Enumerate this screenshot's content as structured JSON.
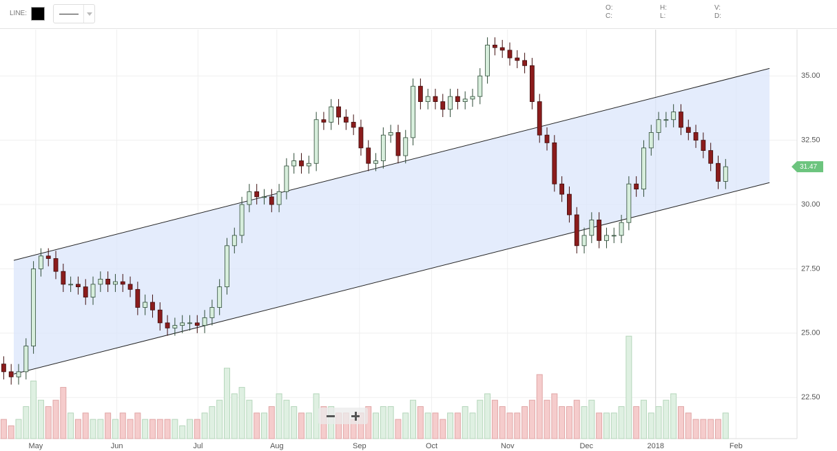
{
  "toolbar": {
    "line_label": "LINE:",
    "quote_labels": [
      "O:",
      "C:",
      "H:",
      "L:",
      "V:",
      "D:"
    ]
  },
  "chart_data": {
    "type": "candlestick",
    "xlim": [
      -0.5,
      106.6
    ],
    "xticks": [
      {
        "value": 4.3,
        "label": "May"
      },
      {
        "value": 15.2,
        "label": "Jun"
      },
      {
        "value": 26.1,
        "label": "Jul"
      },
      {
        "value": 36.7,
        "label": "Aug"
      },
      {
        "value": 47.8,
        "label": "Sep"
      },
      {
        "value": 57.5,
        "label": "Oct"
      },
      {
        "value": 67.7,
        "label": "Nov"
      },
      {
        "value": 78.3,
        "label": "Dec"
      },
      {
        "value": 87.6,
        "label": "2018"
      },
      {
        "value": 98.4,
        "label": "Feb"
      }
    ],
    "ylim": [
      20.9,
      36.8
    ],
    "yticks": [
      {
        "value": 22.5,
        "label": "22.50"
      },
      {
        "value": 25,
        "label": "25.00"
      },
      {
        "value": 27.5,
        "label": "27.50"
      },
      {
        "value": 30,
        "label": "30.00"
      },
      {
        "value": 32.5,
        "label": "32.50"
      },
      {
        "value": 35,
        "label": "35.00"
      }
    ],
    "grid": true,
    "open": [
      23.8,
      23.5,
      23.3,
      23.5,
      24.5,
      27.5,
      28,
      27.9,
      27.4,
      26.9,
      26.9,
      26.8,
      26.4,
      26.9,
      27.1,
      26.9,
      27,
      26.9,
      26.7,
      26,
      26.2,
      25.9,
      25.4,
      25.2,
      25.3,
      25.4,
      25.4,
      25.3,
      25.6,
      26,
      26.8,
      28.4,
      28.8,
      30,
      30.5,
      30.3,
      30.3,
      30,
      30.5,
      31.5,
      31.7,
      31.5,
      31.6,
      33.3,
      33.2,
      33.8,
      33.4,
      33.2,
      33,
      32.2,
      31.6,
      31.7,
      32.7,
      32.8,
      31.9,
      32.6,
      34.6,
      34,
      34.2,
      34,
      33.7,
      34.2,
      34,
      34.1,
      34.2,
      35,
      36.2,
      36.1,
      36,
      35.7,
      35.6,
      35.4,
      34,
      32.7,
      32.4,
      30.8,
      30.4,
      29.6,
      28.4,
      28.8,
      29.4,
      28.6,
      28.8,
      28.8,
      29.3,
      30.8,
      30.6,
      32.2,
      32.8,
      33.3,
      33.3,
      33.6,
      33,
      32.8,
      32.5,
      32.1,
      31.6,
      30.9
    ],
    "high": [
      24.1,
      23.8,
      23.8,
      24.8,
      27.8,
      28.3,
      28.3,
      28.2,
      27.7,
      27.2,
      27.2,
      27.1,
      27.2,
      27.4,
      27.4,
      27.3,
      27.3,
      27.2,
      27.0,
      26.5,
      26.5,
      26.2,
      25.7,
      25.6,
      25.7,
      25.7,
      25.7,
      25.9,
      26.3,
      27.1,
      28.7,
      29.1,
      30.3,
      30.8,
      30.8,
      30.6,
      30.6,
      30.8,
      31.8,
      32.0,
      32.0,
      31.9,
      33.6,
      33.6,
      34.1,
      34.1,
      33.7,
      33.5,
      33.3,
      32.5,
      32.0,
      33.0,
      33.1,
      33.1,
      32.9,
      34.9,
      34.9,
      34.5,
      34.5,
      34.3,
      34.5,
      34.5,
      34.4,
      34.5,
      35.3,
      36.5,
      36.5,
      36.4,
      36.3,
      36.0,
      35.9,
      35.7,
      34.3,
      33.0,
      32.7,
      31.1,
      30.7,
      29.9,
      29.1,
      29.7,
      29.7,
      29.1,
      29.1,
      29.6,
      31.1,
      31.1,
      32.5,
      33.1,
      33.6,
      33.6,
      33.9,
      33.9,
      33.3,
      33.1,
      32.8,
      32.4,
      31.9,
      31.77
    ],
    "low": [
      23.2,
      23.0,
      23.0,
      23.2,
      24.2,
      27.2,
      27.6,
      27.1,
      26.6,
      26.6,
      26.5,
      26.1,
      26.1,
      26.6,
      26.6,
      26.6,
      26.6,
      26.4,
      25.7,
      25.7,
      25.6,
      25.1,
      24.9,
      24.9,
      25.0,
      25.1,
      25.0,
      25.0,
      25.3,
      25.7,
      26.5,
      28.1,
      28.5,
      29.7,
      30.0,
      30.0,
      29.7,
      29.7,
      30.2,
      31.2,
      31.2,
      31.2,
      31.3,
      32.9,
      32.9,
      33.1,
      32.9,
      32.7,
      31.9,
      31.3,
      31.3,
      31.4,
      32.4,
      31.6,
      31.6,
      32.3,
      33.7,
      33.7,
      33.7,
      33.4,
      33.4,
      33.7,
      33.7,
      33.8,
      33.9,
      34.7,
      35.8,
      35.7,
      35.4,
      35.3,
      35.1,
      33.7,
      32.4,
      32.1,
      30.5,
      30.1,
      29.3,
      28.1,
      28.1,
      28.5,
      28.3,
      28.3,
      28.5,
      28.5,
      29.0,
      30.3,
      30.3,
      31.9,
      32.5,
      33.0,
      33.0,
      32.7,
      32.5,
      32.2,
      31.8,
      31.3,
      30.6,
      30.6
    ],
    "close": [
      23.5,
      23.3,
      23.5,
      24.5,
      27.5,
      28,
      27.9,
      27.4,
      26.9,
      26.9,
      26.8,
      26.4,
      26.9,
      27.1,
      26.9,
      27,
      26.9,
      26.7,
      26,
      26.2,
      25.9,
      25.4,
      25.2,
      25.3,
      25.4,
      25.4,
      25.3,
      25.6,
      26,
      26.8,
      28.4,
      28.8,
      30,
      30.5,
      30.3,
      30.3,
      30,
      30.5,
      31.5,
      31.7,
      31.5,
      31.6,
      33.3,
      33.2,
      33.8,
      33.4,
      33.2,
      33,
      32.2,
      31.6,
      31.7,
      32.7,
      32.8,
      31.9,
      32.6,
      34.6,
      34,
      34.2,
      34,
      33.7,
      34.2,
      34,
      34.1,
      34.2,
      35,
      36.2,
      36.1,
      36,
      35.7,
      35.6,
      35.4,
      34,
      32.7,
      32.4,
      30.8,
      30.4,
      29.6,
      28.4,
      28.8,
      29.4,
      28.6,
      28.8,
      28.8,
      29.3,
      30.8,
      30.6,
      32.2,
      32.8,
      33.3,
      33.3,
      33.6,
      33,
      32.8,
      32.5,
      32.1,
      31.6,
      30.9,
      31.47
    ],
    "volume": [
      3,
      2,
      3,
      5,
      9,
      6,
      5,
      6,
      8,
      4,
      3,
      4,
      3,
      3,
      4,
      3,
      4,
      3,
      4,
      3,
      3,
      3,
      3,
      3,
      2,
      3,
      3,
      4,
      5,
      6,
      11,
      7,
      8,
      6,
      4,
      4,
      5,
      7,
      6,
      5,
      4,
      4,
      7,
      5,
      5,
      4,
      4,
      3,
      4,
      5,
      4,
      5,
      5,
      3,
      4,
      6,
      5,
      4,
      4,
      3,
      4,
      4,
      5,
      4,
      6,
      7,
      6,
      5,
      4,
      4,
      5,
      6,
      10,
      6,
      7,
      5,
      5,
      6,
      5,
      6,
      4,
      4,
      4,
      5,
      16,
      5,
      6,
      4,
      5,
      6,
      7,
      5,
      4,
      3,
      3,
      3,
      3,
      4
    ],
    "vlim": [
      0,
      20
    ],
    "up_color": "#d7eedc",
    "down_color": "#8b1c1c",
    "channel": {
      "x": [
        1.35,
        102.9
      ],
      "upper": [
        27.83,
        35.29
      ],
      "lower": [
        23.41,
        30.85
      ],
      "color": "#222222",
      "fill": "#dbe6fb"
    },
    "last_price": 31.47,
    "last_color": "#6cc47e"
  }
}
